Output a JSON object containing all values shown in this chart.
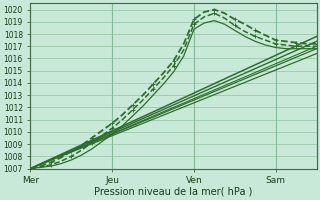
{
  "xlabel": "Pression niveau de la mer( hPa )",
  "bg_color": "#c8e8d8",
  "grid_color": "#88bb99",
  "line_color": "#2d6e2d",
  "ylim": [
    1007,
    1020.5
  ],
  "yticks": [
    1007,
    1008,
    1009,
    1010,
    1011,
    1012,
    1013,
    1014,
    1015,
    1016,
    1017,
    1018,
    1019,
    1020
  ],
  "day_labels": [
    "Mer",
    "Jeu",
    "Ven",
    "Sam"
  ],
  "day_positions": [
    0,
    48,
    96,
    144
  ],
  "total_hours": 168,
  "straight_lines": [
    {
      "x": [
        0,
        168
      ],
      "y": [
        1007.0,
        1017.8
      ],
      "lw": 1.1
    },
    {
      "x": [
        0,
        168
      ],
      "y": [
        1007.0,
        1017.4
      ],
      "lw": 1.0
    },
    {
      "x": [
        0,
        168
      ],
      "y": [
        1007.0,
        1016.8
      ],
      "lw": 0.9
    },
    {
      "x": [
        0,
        168
      ],
      "y": [
        1007.0,
        1016.4
      ],
      "lw": 0.9
    },
    {
      "x": [
        0,
        168
      ],
      "y": [
        1007.0,
        1017.0
      ],
      "lw": 0.8
    }
  ],
  "curved_lines": [
    {
      "x": [
        0,
        6,
        12,
        18,
        24,
        30,
        36,
        42,
        48,
        54,
        60,
        66,
        72,
        78,
        84,
        90,
        96,
        102,
        108,
        114,
        120,
        126,
        132,
        138,
        144,
        150,
        156,
        162,
        168
      ],
      "y": [
        1007.0,
        1007.2,
        1007.5,
        1007.9,
        1008.4,
        1008.9,
        1009.5,
        1010.1,
        1010.7,
        1011.4,
        1012.2,
        1013.0,
        1013.9,
        1014.8,
        1015.8,
        1017.2,
        1019.2,
        1019.8,
        1020.0,
        1019.7,
        1019.2,
        1018.8,
        1018.3,
        1017.9,
        1017.5,
        1017.4,
        1017.3,
        1017.2,
        1017.2
      ],
      "lw": 1.3,
      "marker": true
    },
    {
      "x": [
        0,
        6,
        12,
        18,
        24,
        30,
        36,
        42,
        48,
        54,
        60,
        66,
        72,
        78,
        84,
        90,
        96,
        102,
        108,
        114,
        120,
        126,
        132,
        138,
        144,
        150,
        156,
        162,
        168
      ],
      "y": [
        1007.0,
        1007.1,
        1007.3,
        1007.6,
        1008.0,
        1008.5,
        1009.1,
        1009.7,
        1010.3,
        1011.0,
        1011.8,
        1012.6,
        1013.5,
        1014.4,
        1015.4,
        1016.7,
        1018.8,
        1019.4,
        1019.7,
        1019.3,
        1018.7,
        1018.2,
        1017.8,
        1017.5,
        1017.2,
        1017.1,
        1017.0,
        1017.0,
        1017.0
      ],
      "lw": 1.1,
      "marker": true
    },
    {
      "x": [
        0,
        6,
        12,
        18,
        24,
        30,
        36,
        42,
        48,
        54,
        60,
        66,
        72,
        78,
        84,
        90,
        96,
        102,
        108,
        114,
        120,
        126,
        132,
        138,
        144,
        150,
        156,
        162,
        168
      ],
      "y": [
        1007.0,
        1007.1,
        1007.2,
        1007.4,
        1007.7,
        1008.1,
        1008.6,
        1009.2,
        1009.8,
        1010.5,
        1011.3,
        1012.1,
        1013.0,
        1013.9,
        1014.9,
        1016.2,
        1018.4,
        1018.9,
        1019.1,
        1018.8,
        1018.3,
        1017.8,
        1017.4,
        1017.1,
        1016.9,
        1016.8,
        1016.8,
        1016.8,
        1016.8
      ],
      "lw": 0.9,
      "marker": false
    }
  ]
}
